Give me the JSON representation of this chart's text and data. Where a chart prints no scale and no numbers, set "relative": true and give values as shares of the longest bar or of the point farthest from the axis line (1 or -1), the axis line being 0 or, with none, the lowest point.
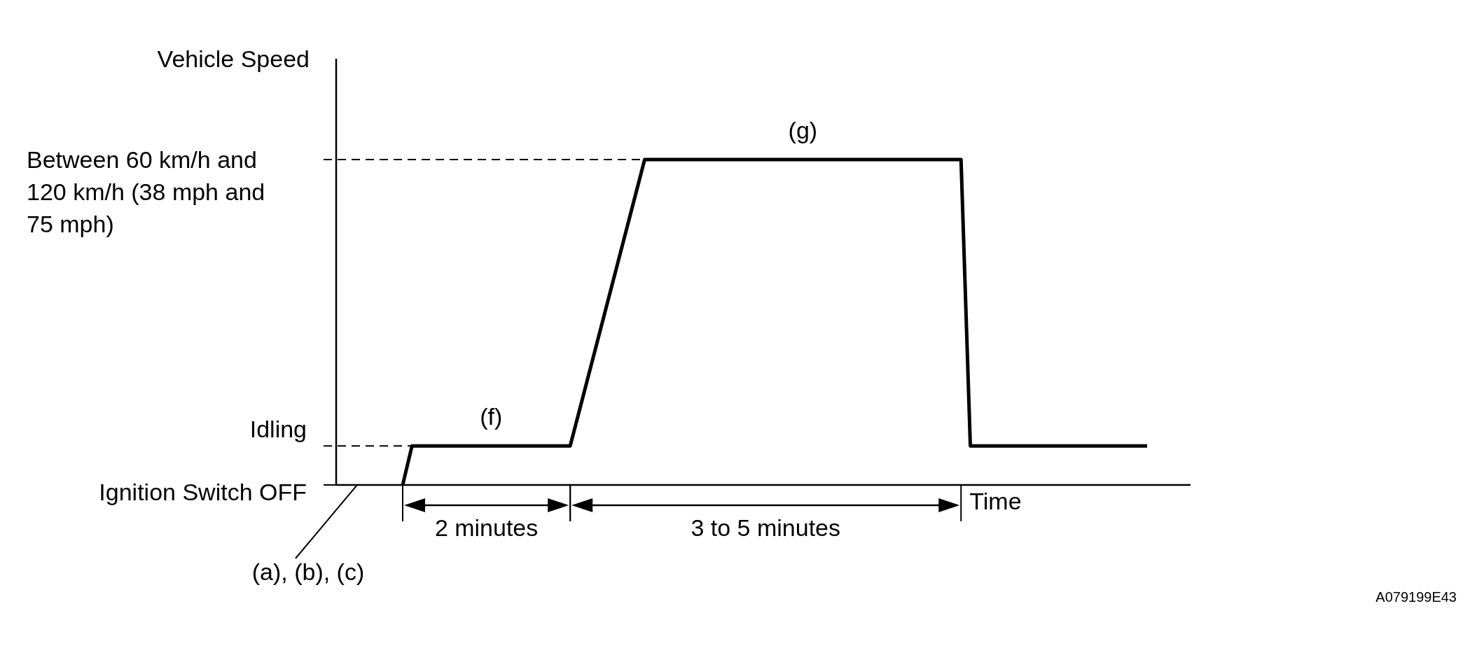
{
  "chart_data": {
    "type": "line",
    "xlabel": "Time",
    "categories": [
      null,
      null,
      null,
      null,
      null,
      null,
      null,
      null,
      null,
      null,
      null,
      null,
      null,
      null,
      null,
      null,
      null,
      null,
      null,
      null,
      null,
      null,
      null,
      null,
      null,
      null,
      null,
      null,
      null,
      null,
      null,
      null,
      null,
      null,
      null,
      null,
      null,
      null,
      null,
      null,
      null,
      null,
      null,
      null,
      null,
      null,
      null,
      null,
      null,
      null,
      null,
      null,
      null,
      null,
      null,
      null,
      null,
      null,
      null,
      null,
      null,
      null,
      null,
      null,
      null,
      null,
      null,
      null,
      null,
      null,
      null,
      null,
      null,
      null,
      null,
      null,
      null,
      null,
      null,
      null,
      null
    ],
    "series": [
      {
        "color": "#000000",
        "values": [
          0,
          0.12,
          0.12,
          0.12,
          0.12,
          0.12,
          0.12,
          0.12,
          0.12,
          0.12,
          0.12,
          0.12,
          0.12,
          0.12,
          0.12,
          0.12,
          0.12,
          0.12,
          0.12,
          0.23,
          0.34,
          0.45,
          0.56,
          0.67,
          0.78,
          0.89,
          1,
          1,
          1,
          1,
          1,
          1,
          1,
          1,
          1,
          1,
          1,
          1,
          1,
          1,
          1,
          1,
          1,
          1,
          1,
          1,
          1,
          1,
          1,
          1,
          1,
          1,
          1,
          1,
          1,
          1,
          1,
          1,
          1,
          1,
          1,
          0.12,
          0.12,
          0.12,
          0.12,
          0.12,
          0.12,
          0.12,
          0.12,
          0.12,
          0.12,
          0.12,
          0.12,
          0.12,
          0.12,
          0.12,
          0.12,
          0.12,
          0.12,
          0.12,
          0.12
        ]
      }
    ],
    "relative": true,
    "ref_lines": [
      {
        "axis": "y",
        "value": 1,
        "label": "Between 60 km/h and 120 km/h (38 mph and 75 mph)",
        "line_style": "dashed"
      },
      {
        "axis": "y",
        "value": 0.12,
        "label": "Idling",
        "line_style": "dashed"
      },
      {
        "axis": "y",
        "value": 0,
        "label": "Ignition Switch OFF",
        "line_style": "solid"
      }
    ],
    "annotations": [
      "(f)",
      "(g)",
      "2 minutes",
      "3 to 5 minutes",
      "(a), (b), (c)",
      "A079199E43",
      "Vehicle Speed"
    ]
  }
}
